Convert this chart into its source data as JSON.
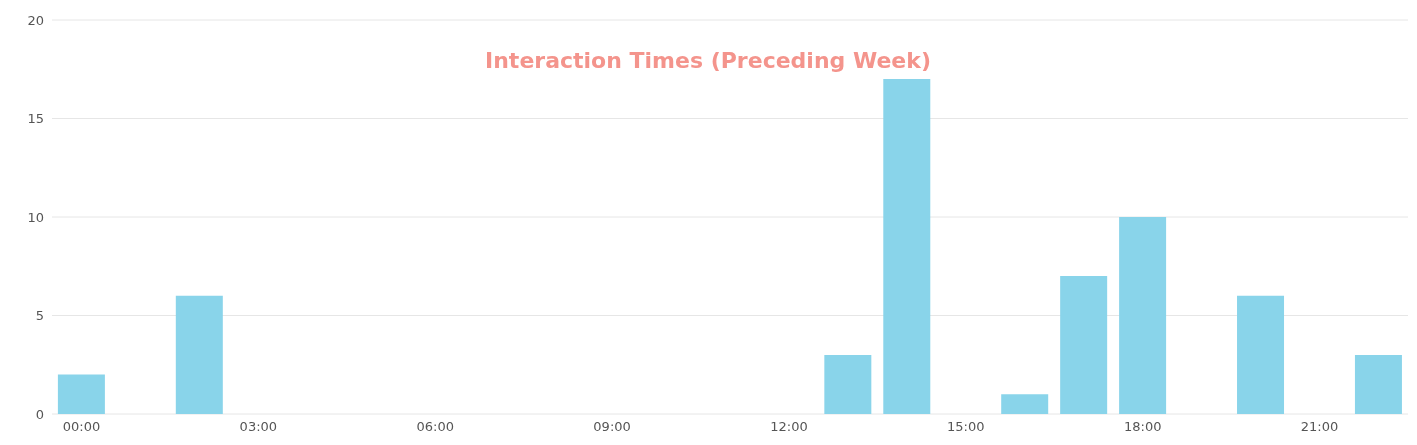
{
  "chart_data": {
    "type": "bar",
    "title": "Interaction Times (Preceding Week)",
    "categories": [
      "00:00",
      null,
      null,
      "03:00",
      null,
      null,
      "06:00",
      null,
      null,
      "09:00",
      null,
      null,
      "12:00",
      null,
      null,
      "15:00",
      null,
      null,
      "18:00",
      null,
      null,
      "21:00",
      null
    ],
    "values": [
      2,
      0,
      6,
      0,
      0,
      0,
      0,
      0,
      0,
      0,
      0,
      0,
      0,
      3,
      17,
      0,
      1,
      7,
      10,
      0,
      6,
      0,
      3
    ],
    "color": "#89d4ea",
    "ylim": [
      0,
      20
    ],
    "yticks": [
      0,
      5,
      10,
      15,
      20
    ],
    "grid": "y"
  }
}
